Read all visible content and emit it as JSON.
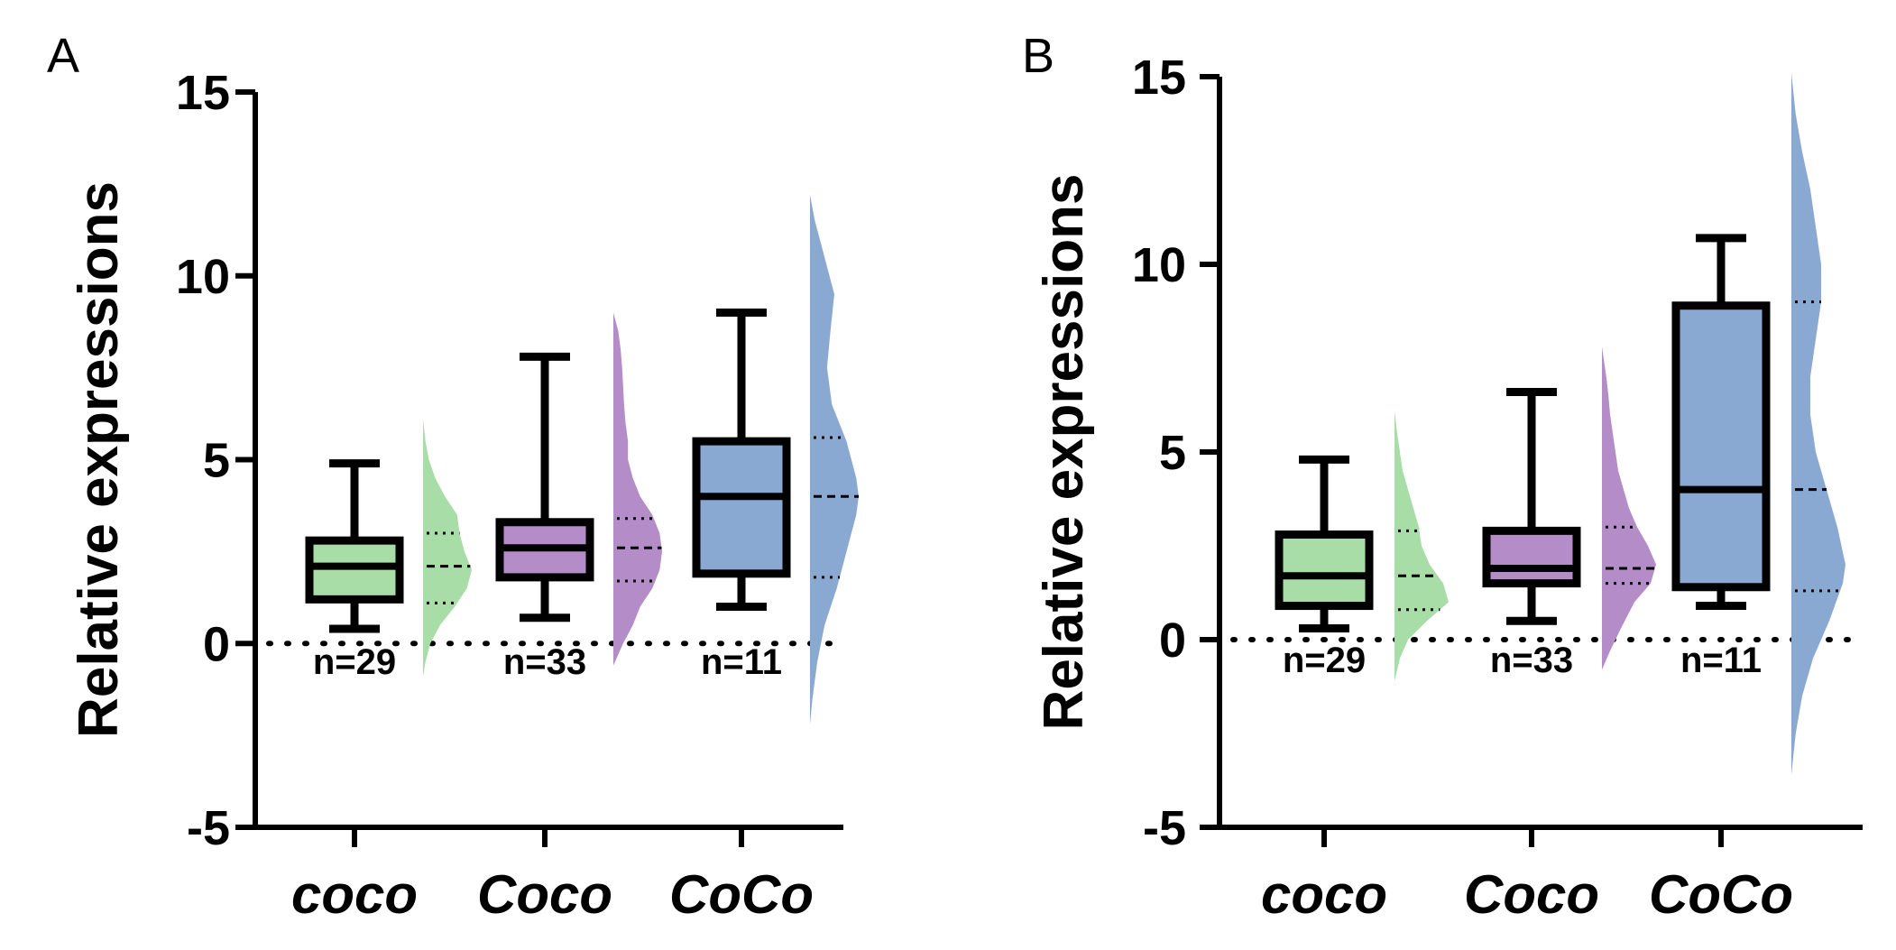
{
  "chart_data": [
    {
      "type": "box_violin",
      "panel": "A",
      "ylabel": "Relative expressions",
      "ylim": [
        -5,
        15
      ],
      "yticks": [
        -5,
        0,
        5,
        10,
        15
      ],
      "categories": [
        "coco",
        "Coco",
        "CoCo"
      ],
      "reference_line": 0,
      "colors": [
        "#a8dda8",
        "#b48cc8",
        "#8aa9d2"
      ],
      "groups": [
        {
          "name": "coco",
          "n_label": "n=29",
          "box": {
            "min": 0.4,
            "q1": 1.2,
            "median": 2.1,
            "q3": 2.8,
            "max": 4.9
          },
          "violin": {
            "min": -0.9,
            "max": 6.1,
            "q1": 1.1,
            "median": 2.1,
            "q3": 3.0,
            "profile": [
              [
                -0.9,
                0.0
              ],
              [
                -0.5,
                0.05
              ],
              [
                0.0,
                0.15
              ],
              [
                0.5,
                0.35
              ],
              [
                1.0,
                0.65
              ],
              [
                1.5,
                0.9
              ],
              [
                2.0,
                1.0
              ],
              [
                2.5,
                0.85
              ],
              [
                3.0,
                0.75
              ],
              [
                3.5,
                0.7
              ],
              [
                4.0,
                0.45
              ],
              [
                4.5,
                0.25
              ],
              [
                5.0,
                0.12
              ],
              [
                5.5,
                0.05
              ],
              [
                6.1,
                0.0
              ]
            ]
          }
        },
        {
          "name": "Coco",
          "n_label": "n=33",
          "box": {
            "min": 0.7,
            "q1": 1.8,
            "median": 2.6,
            "q3": 3.3,
            "max": 7.8
          },
          "violin": {
            "min": -0.6,
            "max": 9.0,
            "q1": 1.7,
            "median": 2.6,
            "q3": 3.4,
            "profile": [
              [
                -0.6,
                0.0
              ],
              [
                0.0,
                0.2
              ],
              [
                0.5,
                0.4
              ],
              [
                1.0,
                0.55
              ],
              [
                1.5,
                0.8
              ],
              [
                2.0,
                0.95
              ],
              [
                2.5,
                1.0
              ],
              [
                3.0,
                0.95
              ],
              [
                3.5,
                0.8
              ],
              [
                4.0,
                0.55
              ],
              [
                4.5,
                0.4
              ],
              [
                5.0,
                0.3
              ],
              [
                5.5,
                0.3
              ],
              [
                6.0,
                0.25
              ],
              [
                6.5,
                0.22
              ],
              [
                7.0,
                0.2
              ],
              [
                7.5,
                0.18
              ],
              [
                8.0,
                0.15
              ],
              [
                8.5,
                0.1
              ],
              [
                9.0,
                0.0
              ]
            ]
          }
        },
        {
          "name": "CoCo",
          "n_label": "n=11",
          "box": {
            "min": 1.0,
            "q1": 1.9,
            "median": 4.0,
            "q3": 5.5,
            "max": 9.0
          },
          "violin": {
            "min": -2.2,
            "max": 12.2,
            "q1": 1.8,
            "median": 4.0,
            "q3": 5.6,
            "profile": [
              [
                -2.2,
                0.0
              ],
              [
                -1.5,
                0.05
              ],
              [
                -0.5,
                0.15
              ],
              [
                0.5,
                0.3
              ],
              [
                1.5,
                0.55
              ],
              [
                2.5,
                0.75
              ],
              [
                3.5,
                0.95
              ],
              [
                4.0,
                1.0
              ],
              [
                4.5,
                0.95
              ],
              [
                5.5,
                0.75
              ],
              [
                6.5,
                0.45
              ],
              [
                7.5,
                0.35
              ],
              [
                8.5,
                0.42
              ],
              [
                9.5,
                0.5
              ],
              [
                10.5,
                0.3
              ],
              [
                11.5,
                0.1
              ],
              [
                12.2,
                0.0
              ]
            ]
          }
        }
      ]
    },
    {
      "type": "box_violin",
      "panel": "B",
      "ylabel": "Relative expressions",
      "ylim": [
        -5,
        15
      ],
      "yticks": [
        -5,
        0,
        5,
        10,
        15
      ],
      "categories": [
        "coco",
        "Coco",
        "CoCo"
      ],
      "reference_line": 0,
      "colors": [
        "#a8dda8",
        "#b48cc8",
        "#8aa9d2"
      ],
      "groups": [
        {
          "name": "coco",
          "n_label": "n=29",
          "box": {
            "min": 0.3,
            "q1": 0.9,
            "median": 1.7,
            "q3": 2.8,
            "max": 4.8
          },
          "violin": {
            "min": -1.1,
            "max": 6.1,
            "q1": 0.8,
            "median": 1.7,
            "q3": 2.9,
            "profile": [
              [
                -1.1,
                0.0
              ],
              [
                -0.5,
                0.1
              ],
              [
                0.0,
                0.25
              ],
              [
                0.5,
                0.6
              ],
              [
                1.0,
                1.0
              ],
              [
                1.5,
                0.9
              ],
              [
                2.0,
                0.65
              ],
              [
                2.5,
                0.5
              ],
              [
                3.0,
                0.45
              ],
              [
                3.5,
                0.35
              ],
              [
                4.0,
                0.25
              ],
              [
                4.5,
                0.15
              ],
              [
                5.0,
                0.1
              ],
              [
                5.5,
                0.05
              ],
              [
                6.1,
                0.0
              ]
            ]
          }
        },
        {
          "name": "Coco",
          "n_label": "n=33",
          "box": {
            "min": 0.5,
            "q1": 1.5,
            "median": 1.9,
            "q3": 2.9,
            "max": 6.6
          },
          "violin": {
            "min": -0.8,
            "max": 7.8,
            "q1": 1.5,
            "median": 1.9,
            "q3": 3.0,
            "profile": [
              [
                -0.8,
                0.0
              ],
              [
                -0.3,
                0.15
              ],
              [
                0.3,
                0.35
              ],
              [
                1.0,
                0.6
              ],
              [
                1.5,
                0.9
              ],
              [
                2.0,
                1.0
              ],
              [
                2.5,
                0.85
              ],
              [
                3.0,
                0.65
              ],
              [
                3.5,
                0.5
              ],
              [
                4.0,
                0.4
              ],
              [
                4.5,
                0.3
              ],
              [
                5.0,
                0.25
              ],
              [
                5.5,
                0.2
              ],
              [
                6.0,
                0.15
              ],
              [
                6.5,
                0.12
              ],
              [
                7.0,
                0.08
              ],
              [
                7.8,
                0.0
              ]
            ]
          }
        },
        {
          "name": "CoCo",
          "n_label": "n=11",
          "box": {
            "min": 0.9,
            "q1": 1.4,
            "median": 4.0,
            "q3": 8.9,
            "max": 10.7
          },
          "violin": {
            "min": -3.6,
            "max": 15.1,
            "q1": 1.3,
            "median": 4.0,
            "q3": 9.0,
            "profile": [
              [
                -3.6,
                0.0
              ],
              [
                -2.5,
                0.08
              ],
              [
                -1.5,
                0.2
              ],
              [
                -0.5,
                0.4
              ],
              [
                0.5,
                0.7
              ],
              [
                1.5,
                0.95
              ],
              [
                2.0,
                1.0
              ],
              [
                3.0,
                0.85
              ],
              [
                4.0,
                0.65
              ],
              [
                5.0,
                0.45
              ],
              [
                6.0,
                0.35
              ],
              [
                7.0,
                0.35
              ],
              [
                8.0,
                0.45
              ],
              [
                9.0,
                0.55
              ],
              [
                10.0,
                0.55
              ],
              [
                11.0,
                0.45
              ],
              [
                12.0,
                0.35
              ],
              [
                13.0,
                0.2
              ],
              [
                14.0,
                0.08
              ],
              [
                15.1,
                0.0
              ]
            ]
          }
        }
      ]
    }
  ]
}
